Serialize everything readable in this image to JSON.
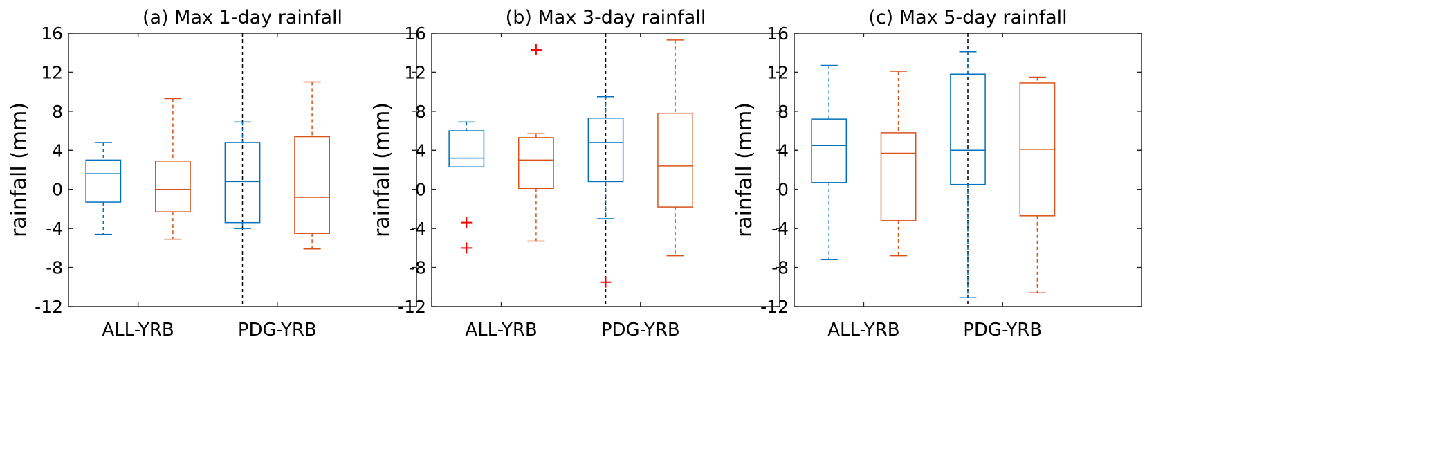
{
  "chart_data": [
    {
      "type": "box",
      "title": "(a) Max 1-day rainfall",
      "ylabel": "rainfall (mm)",
      "ylim": [
        -12,
        16
      ],
      "yticks": [
        "16",
        "12",
        "8",
        "4",
        "0",
        "-4",
        "-8",
        "-12"
      ],
      "ytick_values": [
        16,
        12,
        8,
        4,
        0,
        -4,
        -8,
        -12
      ],
      "groups": [
        "ALL-YRB",
        "PDG-YRB"
      ],
      "boxes": [
        {
          "group": "ALL-YRB",
          "series": "blue",
          "whisker_high": 4.8,
          "q3": 3.0,
          "median": 1.6,
          "q1": -1.3,
          "whisker_low": -4.6,
          "outliers": []
        },
        {
          "group": "ALL-YRB",
          "series": "orange",
          "whisker_high": 9.3,
          "q3": 2.9,
          "median": 0.0,
          "q1": -2.3,
          "whisker_low": -5.1,
          "outliers": []
        },
        {
          "group": "PDG-YRB",
          "series": "blue",
          "whisker_high": 6.9,
          "q3": 4.8,
          "median": 0.8,
          "q1": -3.4,
          "whisker_low": -4.0,
          "outliers": []
        },
        {
          "group": "PDG-YRB",
          "series": "orange",
          "whisker_high": 11.0,
          "q3": 5.4,
          "median": -0.8,
          "q1": -4.5,
          "whisker_low": -6.1,
          "outliers": []
        }
      ]
    },
    {
      "type": "box",
      "title": "(b) Max 3-day rainfall",
      "ylabel": "rainfall (mm)",
      "ylim": [
        -12,
        16
      ],
      "yticks": [
        "16",
        "12",
        "8",
        "4",
        "0",
        "-4",
        "-8",
        "-12"
      ],
      "ytick_values": [
        16,
        12,
        8,
        4,
        0,
        -4,
        -8,
        -12
      ],
      "groups": [
        "ALL-YRB",
        "PDG-YRB"
      ],
      "boxes": [
        {
          "group": "ALL-YRB",
          "series": "blue",
          "whisker_high": 6.9,
          "q3": 6.0,
          "median": 3.2,
          "q1": 2.3,
          "whisker_low": 2.3,
          "outliers": [
            -3.4,
            -6.0
          ]
        },
        {
          "group": "ALL-YRB",
          "series": "orange",
          "whisker_high": 5.7,
          "q3": 5.3,
          "median": 3.0,
          "q1": 0.1,
          "whisker_low": -5.3,
          "outliers": [
            14.3
          ]
        },
        {
          "group": "PDG-YRB",
          "series": "blue",
          "whisker_high": 9.5,
          "q3": 7.3,
          "median": 4.8,
          "q1": 0.8,
          "whisker_low": -3.0,
          "outliers": [
            -9.5
          ]
        },
        {
          "group": "PDG-YRB",
          "series": "orange",
          "whisker_high": 15.3,
          "q3": 7.8,
          "median": 2.4,
          "q1": -1.8,
          "whisker_low": -6.8,
          "outliers": []
        }
      ]
    },
    {
      "type": "box",
      "title": "(c) Max 5-day rainfall",
      "ylabel": "rainfall (mm)",
      "ylim": [
        -12,
        16
      ],
      "yticks": [
        "16",
        "12",
        "8",
        "4",
        "0",
        "-4",
        "-8",
        "-12"
      ],
      "ytick_values": [
        16,
        12,
        8,
        4,
        0,
        -4,
        -8,
        -12
      ],
      "groups": [
        "ALL-YRB",
        "PDG-YRB"
      ],
      "boxes": [
        {
          "group": "ALL-YRB",
          "series": "blue",
          "whisker_high": 12.7,
          "q3": 7.2,
          "median": 4.5,
          "q1": 0.7,
          "whisker_low": -7.2,
          "outliers": []
        },
        {
          "group": "ALL-YRB",
          "series": "orange",
          "whisker_high": 12.1,
          "q3": 5.8,
          "median": 3.7,
          "q1": -3.2,
          "whisker_low": -6.8,
          "outliers": []
        },
        {
          "group": "PDG-YRB",
          "series": "blue",
          "whisker_high": 14.1,
          "q3": 11.8,
          "median": 4.0,
          "q1": 0.5,
          "whisker_low": -11.1,
          "outliers": []
        },
        {
          "group": "PDG-YRB",
          "series": "orange",
          "whisker_high": 11.5,
          "q3": 10.9,
          "median": 4.1,
          "q1": -2.7,
          "whisker_low": -10.6,
          "outliers": []
        }
      ]
    }
  ],
  "colors": {
    "blue": "#0072BD",
    "orange": "#D95319",
    "outlier": "#FF0000",
    "axis": "#262626"
  }
}
